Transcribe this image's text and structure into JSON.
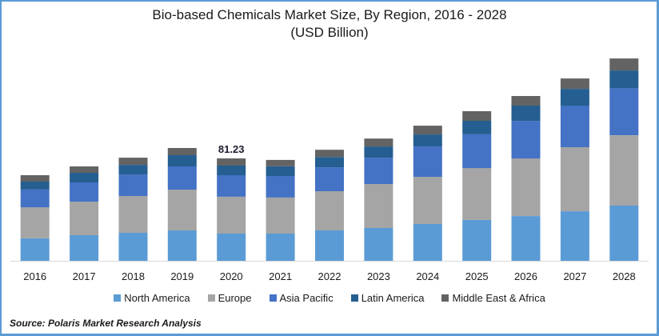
{
  "chart_data": {
    "type": "bar",
    "stacked": true,
    "title": "Bio-based Chemicals Market Size, By Region, 2016 - 2028",
    "subtitle": "(USD Billion)",
    "xlabel": "",
    "ylabel": "",
    "ylim": [
      0,
      165
    ],
    "grid": false,
    "legend_position": "bottom",
    "categories": [
      "2016",
      "2017",
      "2018",
      "2019",
      "2020",
      "2021",
      "2022",
      "2023",
      "2024",
      "2025",
      "2026",
      "2027",
      "2028"
    ],
    "series": [
      {
        "name": "North America",
        "color": "#5b9bd5",
        "values": [
          17.8,
          20.3,
          22.2,
          24.1,
          21.6,
          21.6,
          24.1,
          26.0,
          29.2,
          32.4,
          35.5,
          39.3,
          43.8
        ]
      },
      {
        "name": "Europe",
        "color": "#a5a5a5",
        "values": [
          24.7,
          26.7,
          29.2,
          32.4,
          29.2,
          28.6,
          31.1,
          34.9,
          37.4,
          41.2,
          45.7,
          50.8,
          55.8
        ]
      },
      {
        "name": "Asia Pacific",
        "color": "#4472c4",
        "values": [
          14.0,
          15.2,
          17.1,
          18.4,
          17.1,
          17.1,
          19.0,
          20.9,
          24.1,
          26.7,
          29.8,
          33.0,
          37.4
        ]
      },
      {
        "name": "Latin America",
        "color": "#255e91",
        "values": [
          6.3,
          7.6,
          7.6,
          8.9,
          7.6,
          7.6,
          8.2,
          8.9,
          9.5,
          10.8,
          12.1,
          13.3,
          14.0
        ]
      },
      {
        "name": "Middle East & Africa",
        "color": "#636363",
        "values": [
          5.1,
          5.1,
          5.7,
          5.7,
          5.7,
          5.1,
          5.7,
          6.3,
          7.0,
          7.6,
          7.6,
          8.2,
          9.5
        ]
      }
    ],
    "annotations": [
      {
        "category": "2020",
        "text": "81.23"
      }
    ]
  },
  "source": "Source: Polaris  Market Research Analysis",
  "colors": {
    "frame_border": "#5b9bd5",
    "axis_line": "#d9d9d9"
  }
}
